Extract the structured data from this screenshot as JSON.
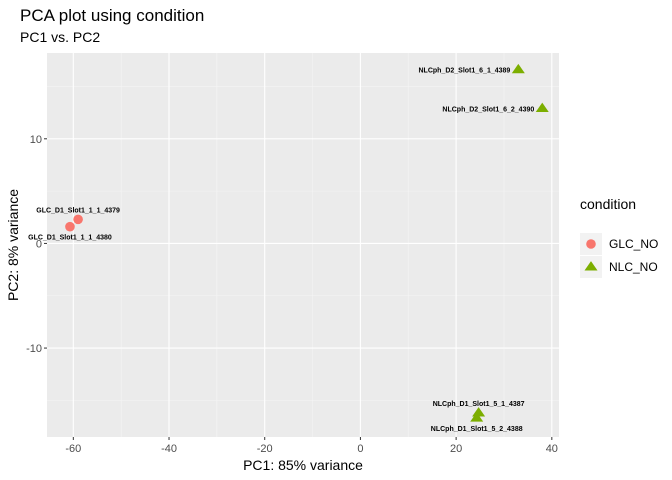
{
  "chart_data": {
    "type": "scatter",
    "title": "PCA plot using condition",
    "subtitle": "PC1 vs. PC2",
    "xlabel": "PC1: 85% variance",
    "ylabel": "PC2: 8% variance",
    "xlim": [
      -65.5,
      41.5
    ],
    "ylim": [
      -18.5,
      18.2
    ],
    "x_ticks": [
      -60,
      -40,
      -20,
      0,
      20,
      40
    ],
    "y_ticks": [
      -10,
      0,
      10
    ],
    "x_tick_labels": [
      "-60",
      "-40",
      "-20",
      "0",
      "20",
      "40"
    ],
    "y_tick_labels": [
      "-10",
      "0",
      "10"
    ],
    "grid": true,
    "legend": {
      "title": "condition",
      "placement": "right",
      "entries": [
        {
          "name": "GLC_NO",
          "color": "#F8766D",
          "shape": "circle"
        },
        {
          "name": "NLC_NO",
          "color": "#7CAE00",
          "shape": "triangle"
        }
      ]
    },
    "series": [
      {
        "name": "GLC_NO",
        "color": "#F8766D",
        "shape": "circle",
        "points": [
          {
            "x": -59.0,
            "y": 2.3,
            "label": "GLC_D1_Slot1_1_1_4379",
            "label_pos": "above"
          },
          {
            "x": -60.7,
            "y": 1.6,
            "label": "GLC_D1_Slot1_1_1_4380",
            "label_pos": "below"
          }
        ]
      },
      {
        "name": "NLC_NO",
        "color": "#7CAE00",
        "shape": "triangle",
        "points": [
          {
            "x": 33.0,
            "y": 16.6,
            "label": "NLCph_D2_Slot1_6_1_4389",
            "label_pos": "left"
          },
          {
            "x": 38.0,
            "y": 12.9,
            "label": "NLCph_D2_Slot1_6_2_4390",
            "label_pos": "left"
          },
          {
            "x": 24.7,
            "y": -16.2,
            "label": "NLCph_D1_Slot1_5_1_4387",
            "label_pos": "above"
          },
          {
            "x": 24.3,
            "y": -16.7,
            "label": "NLCph_D1_Slot1_5_2_4388",
            "label_pos": "below"
          }
        ]
      }
    ]
  },
  "colors": {
    "panel_background": "#EBEBEB",
    "grid_major": "#FFFFFF",
    "grid_minor": "#F5F5F5",
    "glc": "#F8766D",
    "nlc": "#7CAE00"
  }
}
